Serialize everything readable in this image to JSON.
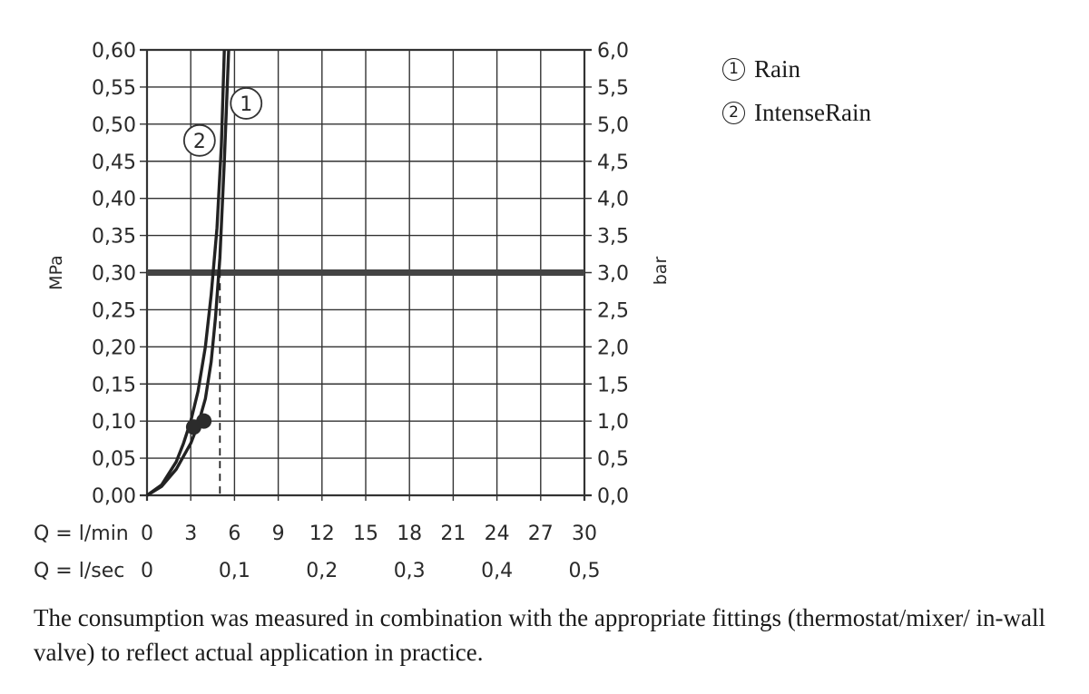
{
  "chart_data": {
    "type": "line",
    "title": "",
    "ylabel_left": "MPa",
    "ylabel_right": "bar",
    "ylim": [
      0,
      0.6
    ],
    "y_ticks_left": [
      "0,00",
      "0,05",
      "0,10",
      "0,15",
      "0,20",
      "0,25",
      "0,30",
      "0,35",
      "0,40",
      "0,45",
      "0,50",
      "0,55",
      "0,60"
    ],
    "y_ticks_right": [
      "0,0",
      "0,5",
      "1,0",
      "1,5",
      "2,0",
      "2,5",
      "3,0",
      "3,5",
      "4,0",
      "4,5",
      "5,0",
      "5,5",
      "6,0"
    ],
    "xlim": [
      0,
      30
    ],
    "x_row1_label": "Q = l/min",
    "x_ticks_lmin": [
      "0",
      "3",
      "6",
      "9",
      "12",
      "15",
      "18",
      "21",
      "24",
      "27",
      "30"
    ],
    "x_row2_label": "Q = l/sec",
    "x_ticks_lsec": [
      "0",
      "0,1",
      "0,2",
      "0,3",
      "0,4",
      "0,5"
    ],
    "grid": true,
    "reference_line_y": 0.3,
    "flow_marker_x": 5,
    "series": [
      {
        "name": "1",
        "x": [
          0,
          1,
          2,
          3,
          3.5,
          4,
          4.4,
          4.7,
          5.0,
          5.3,
          5.6
        ],
        "y": [
          0,
          0.012,
          0.035,
          0.07,
          0.095,
          0.13,
          0.18,
          0.24,
          0.32,
          0.45,
          0.6
        ]
      },
      {
        "name": "2",
        "x": [
          0,
          1,
          2,
          2.5,
          3,
          3.5,
          4,
          4.4,
          4.8,
          5.1,
          5.3
        ],
        "y": [
          0,
          0.014,
          0.045,
          0.07,
          0.1,
          0.14,
          0.2,
          0.27,
          0.36,
          0.47,
          0.6
        ]
      }
    ],
    "points": [
      {
        "series": "1",
        "x": 3.9,
        "y": 0.1
      },
      {
        "series": "2",
        "x": 3.2,
        "y": 0.092
      }
    ],
    "curve_labels": [
      {
        "text": "1",
        "x": 6.8,
        "y": 0.528
      },
      {
        "text": "2",
        "x": 3.6,
        "y": 0.478
      }
    ]
  },
  "legend": {
    "items": [
      {
        "num": "1",
        "label": "Rain"
      },
      {
        "num": "2",
        "label": "IntenseRain"
      }
    ]
  },
  "note": "The consumption was measured in combination with the appropriate fittings (thermostat/mixer/ in-wall valve) to reflect actual application in practice.",
  "colors": {
    "line": "#222222",
    "grid": "#333333",
    "reference": "#444444"
  }
}
